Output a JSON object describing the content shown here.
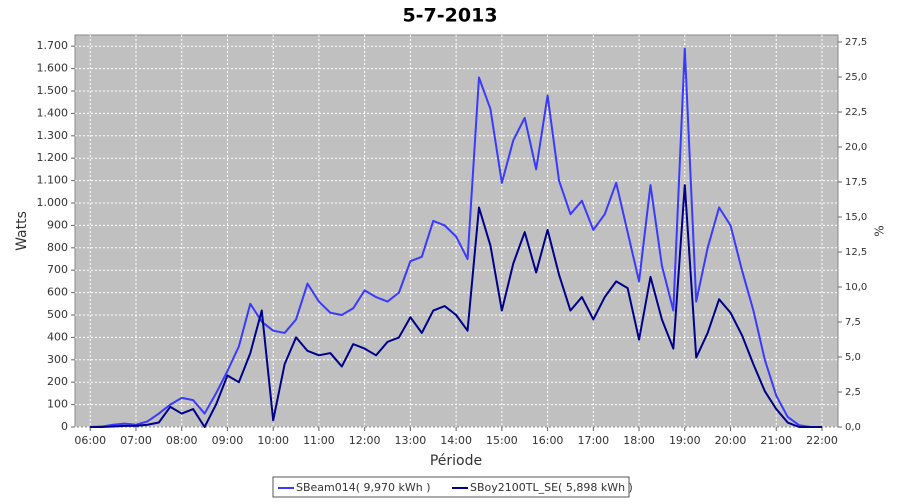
{
  "chart_data": {
    "type": "line",
    "title": "5-7-2013",
    "x_label": "Période",
    "y_label": "Watts",
    "y2_label": "%",
    "x": [
      "06:00",
      "06:15",
      "06:30",
      "06:45",
      "07:00",
      "07:15",
      "07:30",
      "07:45",
      "08:00",
      "08:15",
      "08:30",
      "08:45",
      "09:00",
      "09:15",
      "09:30",
      "09:45",
      "10:00",
      "10:15",
      "10:30",
      "10:45",
      "11:00",
      "11:15",
      "11:30",
      "11:45",
      "12:00",
      "12:15",
      "12:30",
      "12:45",
      "13:00",
      "13:15",
      "13:30",
      "13:45",
      "14:00",
      "14:15",
      "14:30",
      "14:45",
      "15:00",
      "15:15",
      "15:30",
      "15:45",
      "16:00",
      "16:15",
      "16:30",
      "16:45",
      "17:00",
      "17:15",
      "17:30",
      "17:45",
      "18:00",
      "18:15",
      "18:30",
      "18:45",
      "19:00",
      "19:15",
      "19:30",
      "19:45",
      "20:00",
      "20:15",
      "20:30",
      "20:45",
      "21:00",
      "21:15",
      "21:30",
      "21:45",
      "22:00"
    ],
    "series": [
      {
        "name": "SBeam014( 9,970 kWh )",
        "color": "#3a3aff",
        "values": [
          0,
          2,
          10,
          15,
          10,
          25,
          60,
          100,
          130,
          120,
          60,
          150,
          250,
          360,
          550,
          470,
          430,
          420,
          480,
          640,
          560,
          510,
          500,
          530,
          610,
          580,
          560,
          600,
          740,
          760,
          920,
          900,
          850,
          750,
          1560,
          1420,
          1090,
          1280,
          1380,
          1150,
          1480,
          1100,
          950,
          1010,
          880,
          950,
          1090,
          870,
          650,
          1080,
          720,
          520,
          1690,
          560,
          800,
          980,
          900,
          700,
          520,
          300,
          140,
          45,
          8,
          0,
          0
        ]
      },
      {
        "name": "SBoy2100TL_SE( 5,898 kWh )",
        "color": "#00008b",
        "values": [
          0,
          0,
          2,
          5,
          5,
          10,
          20,
          90,
          60,
          80,
          0,
          100,
          230,
          200,
          330,
          520,
          30,
          280,
          400,
          340,
          320,
          330,
          270,
          370,
          350,
          320,
          380,
          400,
          490,
          420,
          520,
          540,
          500,
          430,
          980,
          810,
          520,
          730,
          870,
          690,
          880,
          680,
          520,
          580,
          480,
          580,
          650,
          620,
          390,
          670,
          480,
          350,
          1080,
          310,
          420,
          570,
          510,
          410,
          280,
          160,
          80,
          20,
          0,
          0,
          0
        ]
      }
    ],
    "xlim": [
      "05:40",
      "22:21"
    ],
    "xticks": [
      "06:00",
      "07:00",
      "08:00",
      "09:00",
      "10:00",
      "11:00",
      "12:00",
      "13:00",
      "14:00",
      "15:00",
      "16:00",
      "17:00",
      "18:00",
      "19:00",
      "20:00",
      "21:00",
      "22:00"
    ],
    "ylim": [
      0,
      1750
    ],
    "yticks": [
      0,
      100,
      200,
      300,
      400,
      500,
      600,
      700,
      800,
      900,
      {
        "value": 1000,
        "label": "1.000"
      },
      {
        "value": 1100,
        "label": "1.100"
      },
      {
        "value": 1200,
        "label": "1.200"
      },
      {
        "value": 1300,
        "label": "1.300"
      },
      {
        "value": 1400,
        "label": "1.400"
      },
      {
        "value": 1500,
        "label": "1.500"
      },
      {
        "value": 1600,
        "label": "1.600"
      },
      {
        "value": 1700,
        "label": "1.700"
      }
    ],
    "y2lim": [
      0,
      28
    ],
    "y2ticks": [
      {
        "value": 0,
        "label": "0,0"
      },
      {
        "value": 2.5,
        "label": "2,5"
      },
      {
        "value": 5,
        "label": "5,0"
      },
      {
        "value": 7.5,
        "label": "7,5"
      },
      {
        "value": 10,
        "label": "10,0"
      },
      {
        "value": 12.5,
        "label": "12,5"
      },
      {
        "value": 15,
        "label": "15,0"
      },
      {
        "value": 17.5,
        "label": "17,5"
      },
      {
        "value": 20,
        "label": "20,0"
      },
      {
        "value": 22.5,
        "label": "22,5"
      },
      {
        "value": 25,
        "label": "25,0"
      },
      {
        "value": 27.5,
        "label": "27,5"
      }
    ],
    "grid": true,
    "legend": "bottom"
  }
}
